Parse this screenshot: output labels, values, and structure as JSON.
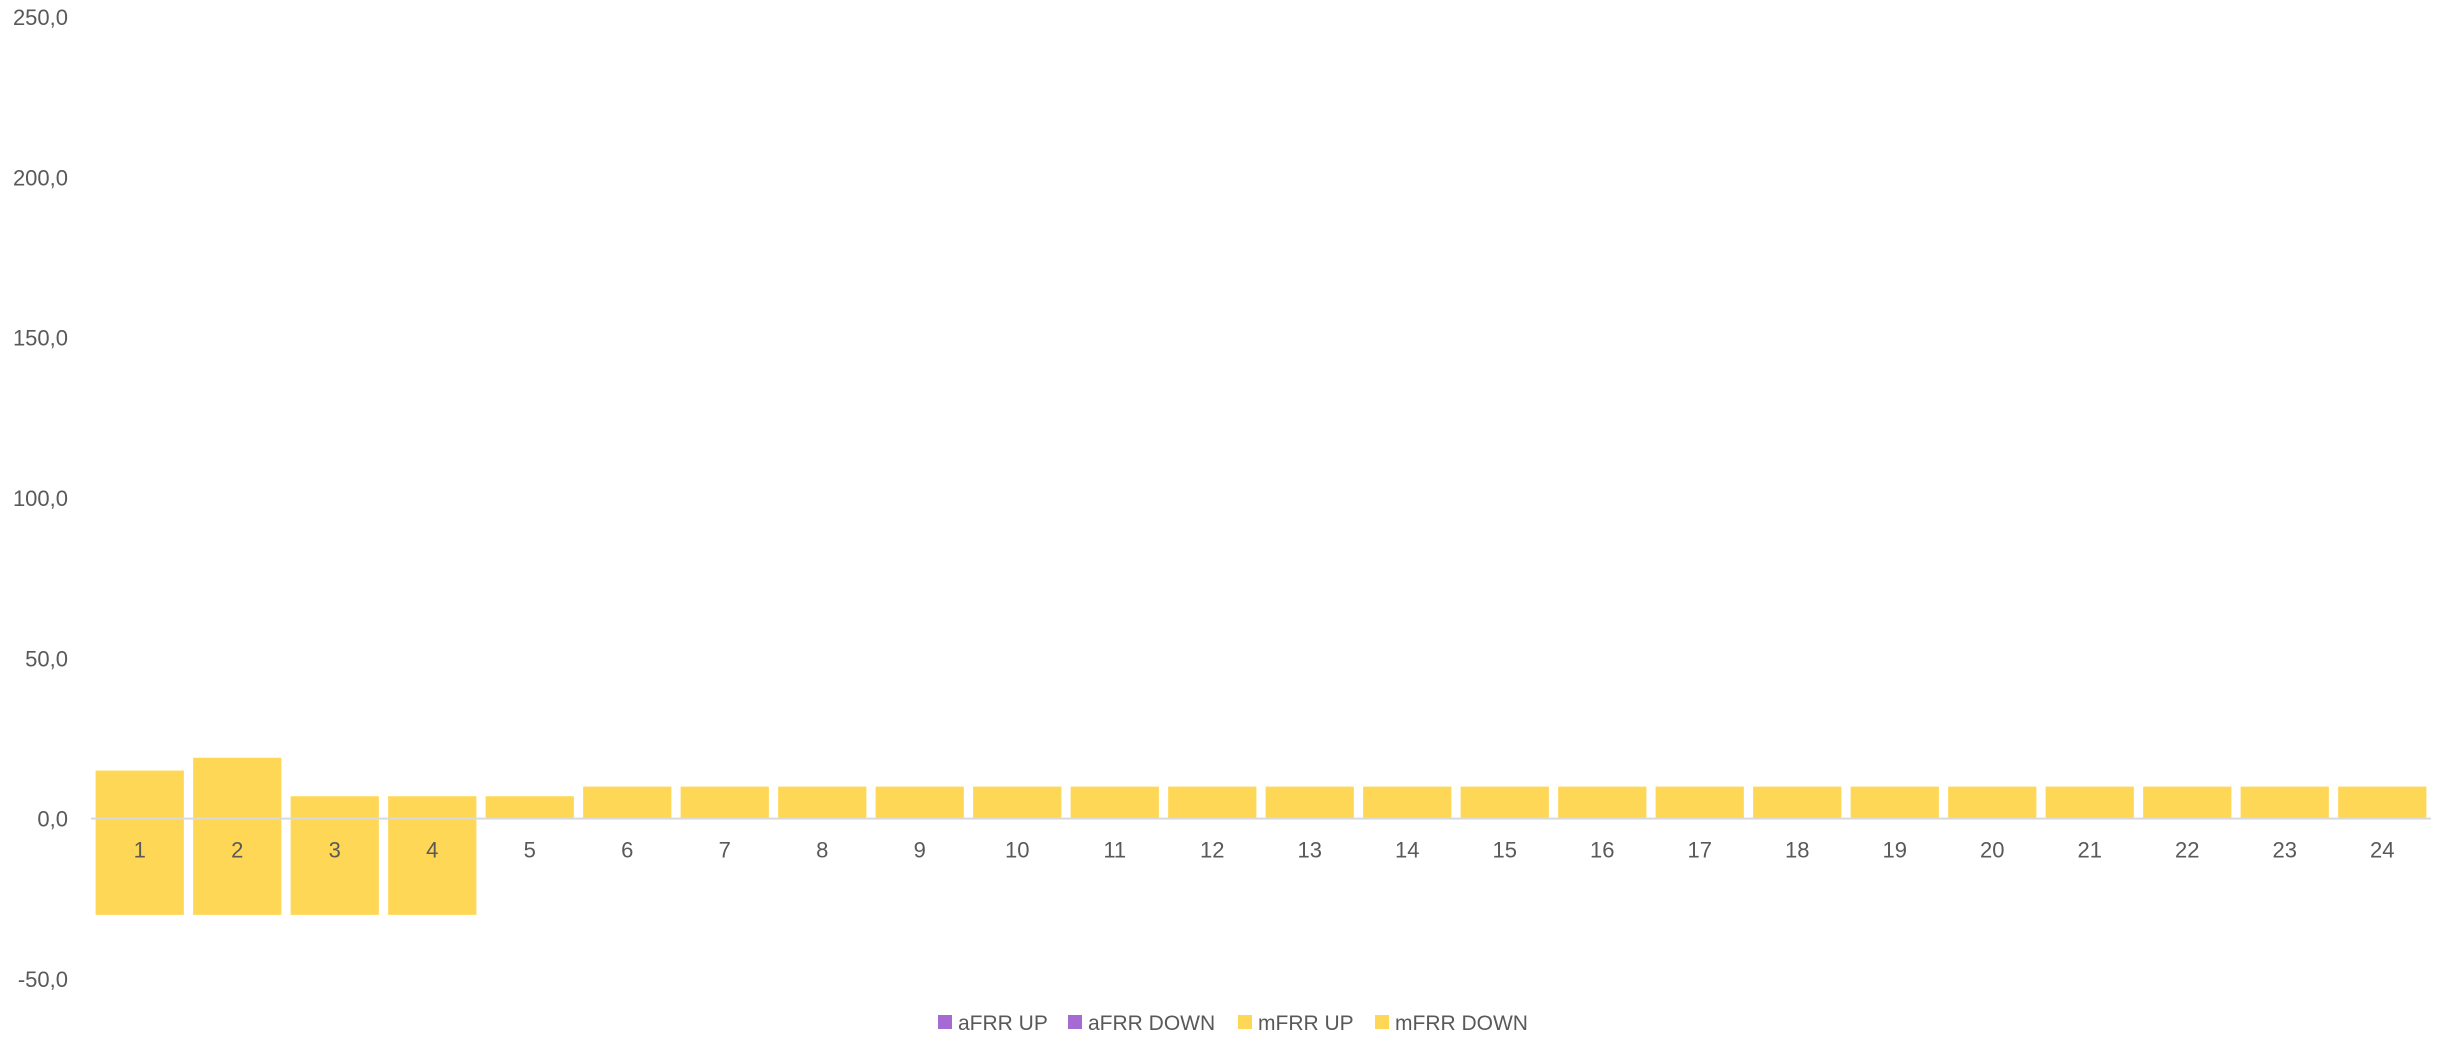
{
  "chart_data": {
    "type": "bar",
    "stacked": true,
    "categories": [
      "1",
      "2",
      "3",
      "4",
      "5",
      "6",
      "7",
      "8",
      "9",
      "10",
      "11",
      "12",
      "13",
      "14",
      "15",
      "16",
      "17",
      "18",
      "19",
      "20",
      "21",
      "22",
      "23",
      "24"
    ],
    "series": [
      {
        "name": "aFRR UP",
        "color": "#A66BD3",
        "values": [
          0,
          0,
          0,
          0,
          0,
          0,
          0,
          0,
          0,
          0,
          0,
          0,
          0,
          0,
          0,
          0,
          0,
          0,
          0,
          0,
          0,
          0,
          0,
          0
        ]
      },
      {
        "name": "aFRR DOWN",
        "color": "#A66BD3",
        "values": [
          0,
          0,
          0,
          0,
          0,
          0,
          0,
          0,
          0,
          0,
          0,
          0,
          0,
          0,
          0,
          0,
          0,
          0,
          0,
          0,
          0,
          0,
          0,
          0
        ]
      },
      {
        "name": "mFRR UP",
        "color": "#FFD756",
        "values": [
          15,
          19,
          7,
          7,
          7,
          10,
          10,
          10,
          10,
          10,
          10,
          10,
          10,
          10,
          10,
          10,
          10,
          10,
          10,
          10,
          10,
          10,
          10,
          10
        ]
      },
      {
        "name": "mFRR DOWN",
        "color": "#FFD756",
        "values": [
          -30,
          -30,
          -30,
          -30,
          0,
          0,
          0,
          0,
          0,
          0,
          0,
          0,
          0,
          0,
          0,
          0,
          0,
          0,
          0,
          0,
          0,
          0,
          0,
          0
        ]
      }
    ],
    "ylim": [
      -50,
      250
    ],
    "yticks": [
      "250,0",
      "200,0",
      "150,0",
      "100,0",
      "50,0",
      "0,0",
      "-50,0"
    ],
    "ytick_values": [
      250,
      200,
      150,
      100,
      50,
      0,
      -50
    ],
    "grid": false,
    "legend": "bottom",
    "title": "",
    "xlabel": "",
    "ylabel": ""
  }
}
